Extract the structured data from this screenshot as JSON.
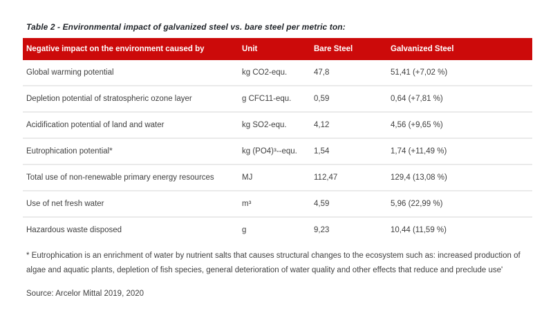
{
  "page": {
    "title": "Table 2 - Environmental impact of galvanized steel vs. bare steel per metric ton:",
    "footnote": "* Eutrophication is an enrichment of water by nutrient salts that causes structural changes to the ecosystem such as: increased production of algae and aquatic plants, depletion of fish species, general deterioration of water quality and other effects that reduce and preclude use'",
    "source": "Source: Arcelor Mittal 2019, 2020"
  },
  "table": {
    "columns": [
      "Negative impact on the environment caused by",
      "Unit",
      "Bare Steel",
      "Galvanized Steel"
    ],
    "rows": [
      {
        "impact": "Global warming potential",
        "unit": "kg CO2-equ.",
        "bare_steel": "47,8",
        "galvanized_steel": "51,41 (+7,02 %)"
      },
      {
        "impact": "Depletion potential of stratospheric ozone layer",
        "unit": "g CFC11-equ.",
        "bare_steel": "0,59",
        "galvanized_steel": "0,64 (+7,81 %)"
      },
      {
        "impact": "Acidification potential of land and water",
        "unit": "kg SO2-equ.",
        "bare_steel": "4,12",
        "galvanized_steel": "4,56 (+9,65 %)"
      },
      {
        "impact": "Eutrophication potential*",
        "unit": "kg (PO4)³--equ.",
        "bare_steel": "1,54",
        "galvanized_steel": "1,74 (+11,49 %)"
      },
      {
        "impact": "Total use of non-renewable primary energy resources",
        "unit": "MJ",
        "bare_steel": "112,47",
        "galvanized_steel": "129,4 (13,08 %)"
      },
      {
        "impact": "Use of net fresh water",
        "unit": "m³",
        "bare_steel": "4,59",
        "galvanized_steel": "5,96 (22,99 %)"
      },
      {
        "impact": "Hazardous waste disposed",
        "unit": "g",
        "bare_steel": "9,23",
        "galvanized_steel": "10,44 (11,59 %)"
      }
    ]
  },
  "colors": {
    "header_background": "#CC0A0A",
    "header_text": "#FFFFFF",
    "body_text": "#3F3F3F",
    "title_text": "#1F2328",
    "row_divider": "#EAEAEA"
  }
}
